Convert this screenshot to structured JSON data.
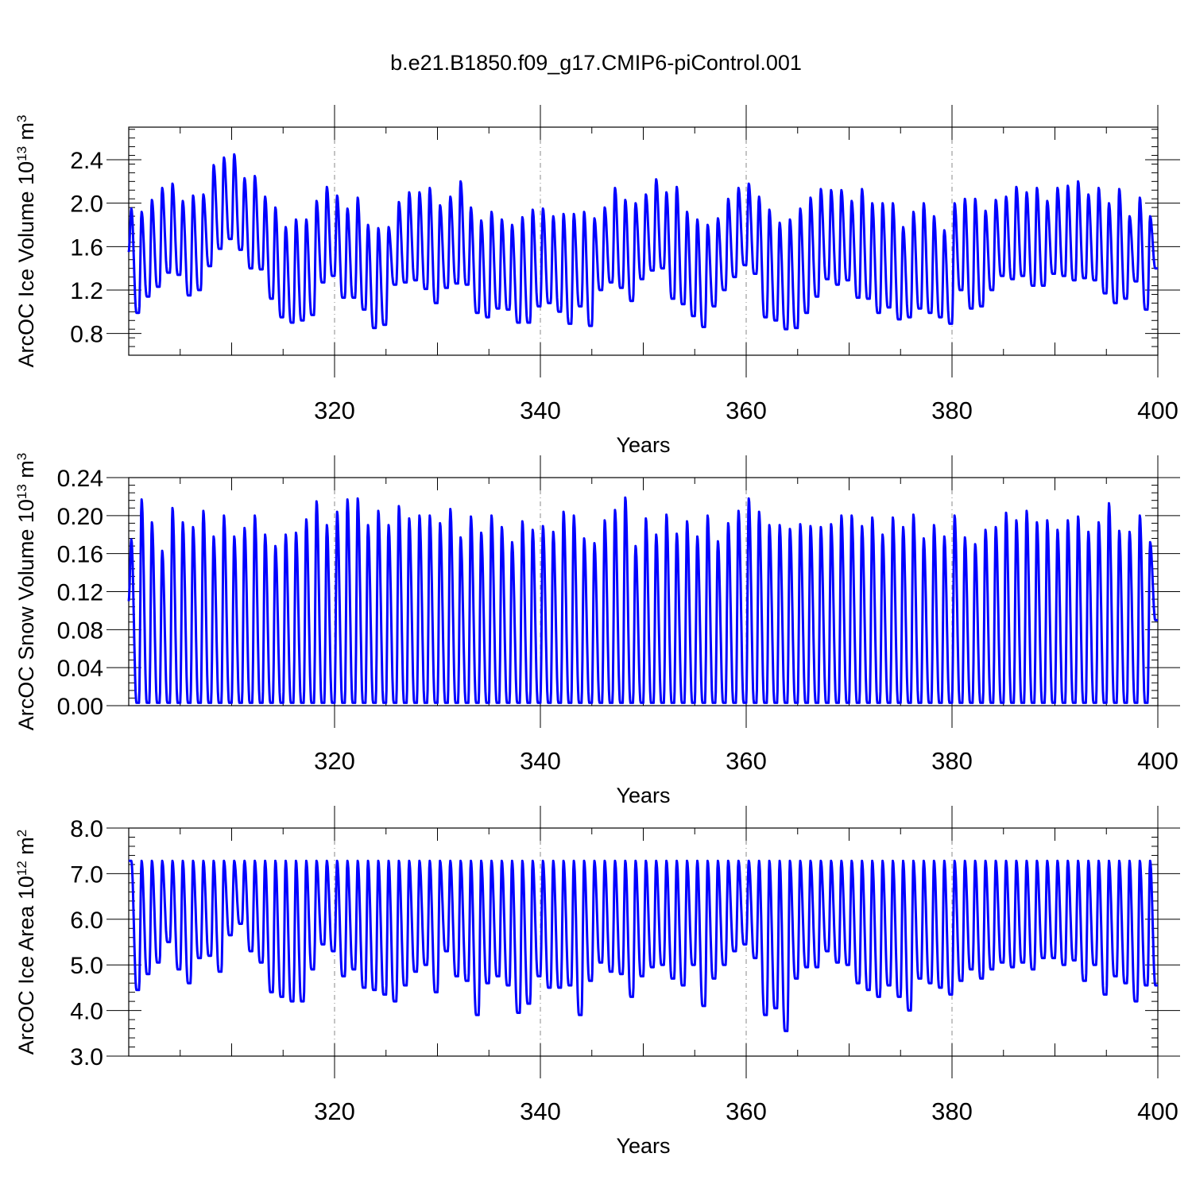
{
  "figure_title": "b.e21.B1850.f09_g17.CMIP6-piControl.001",
  "colors": {
    "series": "#0000ff",
    "axis": "#000000",
    "grid": "#888888"
  },
  "chart_data": [
    {
      "type": "line",
      "title": "b.e21.B1850.f09_g17.CMIP6-piControl.001",
      "ylabel": "ArcOC Ice Volume",
      "yunit_base": "10",
      "yunit_exp": "13",
      "yunit_rest": "m",
      "yunit_rest_exp": "3",
      "xlabel": "Years",
      "xlim": [
        300,
        400
      ],
      "ylim": [
        0.6,
        2.7
      ],
      "x_ticks": [
        320,
        340,
        360,
        380,
        400
      ],
      "x_tick_labels": [
        "320",
        "340",
        "360",
        "380",
        "400"
      ],
      "y_ticks": [
        0.8,
        1.2,
        1.6,
        2.0,
        2.4
      ],
      "y_tick_labels": [
        "0.8",
        "1.2",
        "1.6",
        "2.0",
        "2.4"
      ],
      "vertical_gridlines_at": [
        320,
        340,
        360,
        380
      ],
      "start_value": 1.55,
      "series": [
        {
          "name": "ArcOC Ice Volume",
          "annual_max": [
            1.95,
            1.92,
            2.03,
            2.14,
            2.18,
            2.02,
            2.07,
            2.08,
            2.35,
            2.42,
            2.45,
            2.23,
            2.25,
            2.06,
            1.96,
            1.78,
            1.85,
            1.85,
            2.02,
            2.15,
            2.07,
            1.95,
            2.05,
            1.8,
            1.77,
            1.78,
            2.01,
            2.1,
            2.1,
            2.14,
            1.98,
            2.06,
            2.2,
            1.96,
            1.84,
            1.92,
            1.85,
            1.8,
            1.87,
            1.94,
            1.95,
            1.88,
            1.9,
            1.9,
            1.92,
            1.86,
            1.96,
            2.14,
            2.03,
            2.0,
            2.08,
            2.22,
            2.1,
            2.15,
            1.92,
            1.85,
            1.8,
            1.86,
            2.04,
            2.14,
            2.18,
            2.06,
            1.94,
            1.82,
            1.85,
            1.95,
            2.05,
            2.13,
            2.12,
            2.12,
            2.02,
            2.13,
            2.0,
            2.0,
            2.0,
            1.78,
            1.92,
            2.0,
            1.88,
            1.75,
            2.0,
            2.04,
            2.04,
            1.93,
            2.03,
            2.06,
            2.15,
            2.1,
            2.14,
            2.02,
            2.14,
            2.16,
            2.2,
            2.08,
            2.14,
            2.0,
            2.13,
            1.88,
            2.05,
            1.88
          ],
          "annual_min": [
            0.99,
            1.14,
            1.23,
            1.36,
            1.34,
            1.15,
            1.2,
            1.42,
            1.58,
            1.67,
            1.57,
            1.4,
            1.39,
            1.12,
            0.95,
            0.9,
            0.92,
            0.97,
            1.27,
            1.33,
            1.13,
            1.13,
            1.02,
            0.85,
            0.88,
            1.25,
            1.27,
            1.29,
            1.21,
            1.08,
            1.22,
            1.26,
            1.25,
            0.99,
            0.95,
            1.03,
            1.02,
            0.9,
            0.9,
            1.05,
            1.08,
            1.0,
            0.89,
            1.05,
            0.87,
            1.2,
            1.27,
            1.22,
            1.1,
            1.3,
            1.38,
            1.4,
            1.12,
            1.07,
            0.96,
            0.86,
            1.05,
            1.2,
            1.32,
            1.43,
            1.35,
            0.95,
            0.92,
            0.84,
            0.85,
            0.99,
            1.14,
            1.3,
            1.25,
            1.29,
            1.13,
            1.12,
            0.99,
            1.04,
            0.93,
            0.95,
            1.03,
            0.99,
            0.95,
            0.89,
            1.2,
            1.03,
            1.05,
            1.2,
            1.33,
            1.3,
            1.33,
            1.24,
            1.24,
            1.35,
            1.33,
            1.29,
            1.31,
            1.29,
            1.17,
            1.08,
            1.12,
            1.28,
            1.02,
            1.4
          ]
        }
      ]
    },
    {
      "type": "line",
      "title": "",
      "ylabel": "ArcOC Snow Volume",
      "yunit_base": "10",
      "yunit_exp": "13",
      "yunit_rest": "m",
      "yunit_rest_exp": "3",
      "xlabel": "Years",
      "xlim": [
        300,
        400
      ],
      "ylim": [
        0.0,
        0.24
      ],
      "x_ticks": [
        320,
        340,
        360,
        380,
        400
      ],
      "x_tick_labels": [
        "320",
        "340",
        "360",
        "380",
        "400"
      ],
      "y_ticks": [
        0.0,
        0.04,
        0.08,
        0.12,
        0.16,
        0.2,
        0.24
      ],
      "y_tick_labels": [
        "0.00",
        "0.04",
        "0.08",
        "0.12",
        "0.16",
        "0.20",
        "0.24"
      ],
      "vertical_gridlines_at": [
        320,
        340,
        360,
        380
      ],
      "start_value": 0.11,
      "series": [
        {
          "name": "ArcOC Snow Volume",
          "annual_max": [
            0.175,
            0.217,
            0.193,
            0.163,
            0.208,
            0.193,
            0.188,
            0.205,
            0.178,
            0.2,
            0.178,
            0.187,
            0.2,
            0.18,
            0.168,
            0.18,
            0.182,
            0.196,
            0.215,
            0.19,
            0.204,
            0.217,
            0.218,
            0.19,
            0.205,
            0.19,
            0.21,
            0.197,
            0.2,
            0.2,
            0.192,
            0.207,
            0.177,
            0.199,
            0.182,
            0.2,
            0.188,
            0.172,
            0.194,
            0.185,
            0.189,
            0.183,
            0.204,
            0.2,
            0.176,
            0.171,
            0.195,
            0.206,
            0.219,
            0.168,
            0.197,
            0.18,
            0.201,
            0.181,
            0.194,
            0.178,
            0.2,
            0.173,
            0.192,
            0.205,
            0.218,
            0.204,
            0.19,
            0.19,
            0.186,
            0.191,
            0.189,
            0.188,
            0.191,
            0.2,
            0.2,
            0.189,
            0.198,
            0.18,
            0.198,
            0.188,
            0.201,
            0.176,
            0.19,
            0.178,
            0.2,
            0.177,
            0.17,
            0.185,
            0.188,
            0.203,
            0.195,
            0.205,
            0.193,
            0.195,
            0.185,
            0.195,
            0.199,
            0.183,
            0.193,
            0.213,
            0.184,
            0.183,
            0.2,
            0.172
          ],
          "annual_min": [
            0.003,
            0.003,
            0.003,
            0.003,
            0.003,
            0.003,
            0.003,
            0.003,
            0.003,
            0.003,
            0.003,
            0.003,
            0.003,
            0.003,
            0.003,
            0.003,
            0.003,
            0.003,
            0.003,
            0.003,
            0.003,
            0.003,
            0.003,
            0.003,
            0.003,
            0.003,
            0.003,
            0.003,
            0.003,
            0.003,
            0.003,
            0.003,
            0.003,
            0.003,
            0.003,
            0.003,
            0.003,
            0.003,
            0.003,
            0.003,
            0.003,
            0.003,
            0.003,
            0.003,
            0.003,
            0.003,
            0.003,
            0.003,
            0.003,
            0.003,
            0.003,
            0.003,
            0.003,
            0.003,
            0.003,
            0.003,
            0.003,
            0.003,
            0.003,
            0.003,
            0.003,
            0.003,
            0.003,
            0.003,
            0.003,
            0.003,
            0.003,
            0.003,
            0.003,
            0.003,
            0.003,
            0.003,
            0.003,
            0.003,
            0.003,
            0.003,
            0.003,
            0.003,
            0.003,
            0.003,
            0.003,
            0.003,
            0.003,
            0.003,
            0.003,
            0.003,
            0.003,
            0.003,
            0.003,
            0.003,
            0.003,
            0.003,
            0.003,
            0.003,
            0.003,
            0.003,
            0.003,
            0.003,
            0.003,
            0.09
          ]
        }
      ]
    },
    {
      "type": "line",
      "title": "",
      "ylabel": "ArcOC Ice Area",
      "yunit_base": "10",
      "yunit_exp": "12",
      "yunit_rest": "m",
      "yunit_rest_exp": "2",
      "xlabel": "Years",
      "xlim": [
        300,
        400
      ],
      "ylim": [
        3.0,
        8.0
      ],
      "x_ticks": [
        320,
        340,
        360,
        380,
        400
      ],
      "x_tick_labels": [
        "320",
        "340",
        "360",
        "380",
        "400"
      ],
      "y_ticks": [
        3.0,
        4.0,
        5.0,
        6.0,
        7.0,
        8.0
      ],
      "y_tick_labels": [
        "3.0",
        "4.0",
        "5.0",
        "6.0",
        "7.0",
        "8.0"
      ],
      "vertical_gridlines_at": [
        320,
        340,
        360,
        380
      ],
      "start_value": 7.28,
      "series": [
        {
          "name": "ArcOC Ice Area",
          "annual_max": [
            7.28,
            7.28,
            7.28,
            7.28,
            7.28,
            7.28,
            7.28,
            7.28,
            7.28,
            7.28,
            7.28,
            7.28,
            7.28,
            7.28,
            7.28,
            7.28,
            7.28,
            7.28,
            7.28,
            7.28,
            7.28,
            7.28,
            7.28,
            7.28,
            7.28,
            7.28,
            7.28,
            7.28,
            7.28,
            7.28,
            7.28,
            7.28,
            7.28,
            7.28,
            7.28,
            7.28,
            7.28,
            7.28,
            7.28,
            7.28,
            7.28,
            7.28,
            7.28,
            7.28,
            7.28,
            7.28,
            7.28,
            7.28,
            7.28,
            7.28,
            7.28,
            7.28,
            7.28,
            7.28,
            7.28,
            7.28,
            7.28,
            7.28,
            7.28,
            7.28,
            7.28,
            7.28,
            7.28,
            7.28,
            7.28,
            7.28,
            7.28,
            7.28,
            7.28,
            7.28,
            7.28,
            7.28,
            7.28,
            7.28,
            7.28,
            7.28,
            7.28,
            7.28,
            7.28,
            7.28,
            7.28,
            7.28,
            7.28,
            7.28,
            7.28,
            7.28,
            7.28,
            7.28,
            7.28,
            7.28,
            7.28,
            7.28,
            7.28,
            7.28,
            7.28,
            7.28,
            7.28,
            7.28,
            7.28,
            7.28
          ],
          "annual_min": [
            4.45,
            4.8,
            5.05,
            5.5,
            4.9,
            4.6,
            5.15,
            5.2,
            4.85,
            5.65,
            5.9,
            5.3,
            5.05,
            4.4,
            4.3,
            4.2,
            4.2,
            4.9,
            5.45,
            5.3,
            4.75,
            4.9,
            4.5,
            4.45,
            4.35,
            4.2,
            4.55,
            4.85,
            5.0,
            4.4,
            5.3,
            4.75,
            4.65,
            3.9,
            4.6,
            4.75,
            4.55,
            3.95,
            4.15,
            4.75,
            4.5,
            4.5,
            4.55,
            3.9,
            4.65,
            5.05,
            4.85,
            4.8,
            4.3,
            4.75,
            4.95,
            5.0,
            4.7,
            4.55,
            5.0,
            4.1,
            4.7,
            5.0,
            5.3,
            5.45,
            5.15,
            3.9,
            4.05,
            3.55,
            4.7,
            4.95,
            4.95,
            5.3,
            5.05,
            5.0,
            4.6,
            4.45,
            4.3,
            4.55,
            4.3,
            4.0,
            4.7,
            4.6,
            4.5,
            4.35,
            4.65,
            4.9,
            4.7,
            4.9,
            5.05,
            4.95,
            5.05,
            4.9,
            5.15,
            5.15,
            5.0,
            5.1,
            4.65,
            5.0,
            4.35,
            4.75,
            4.6,
            4.2,
            4.55,
            4.55
          ]
        }
      ]
    }
  ]
}
